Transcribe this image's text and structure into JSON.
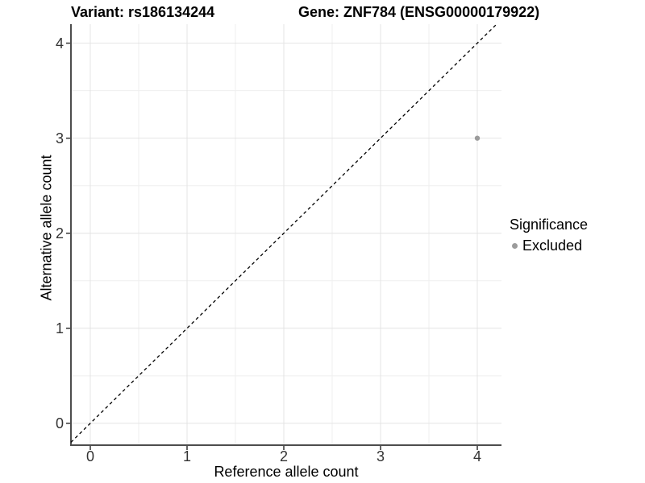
{
  "header": {
    "variant_title": "Variant: rs186134244",
    "gene_title": "Gene: ZNF784 (ENSG00000179922)"
  },
  "axes": {
    "x": {
      "label": "Reference allele count",
      "tick_values": [
        0,
        1,
        2,
        3,
        4
      ]
    },
    "y": {
      "label": "Alternative allele count",
      "tick_values": [
        0,
        1,
        2,
        3,
        4
      ]
    }
  },
  "legend": {
    "title": "Significance",
    "items": [
      {
        "label": "Excluded",
        "color": "#9b9b9b"
      }
    ]
  },
  "chart_data": {
    "type": "scatter",
    "title": "Variant: rs186134244 | Gene: ZNF784 (ENSG00000179922)",
    "xlabel": "Reference allele count",
    "ylabel": "Alternative allele count",
    "xlim": [
      -0.2,
      4.25
    ],
    "ylim": [
      -0.23,
      4.2
    ],
    "x_major": [
      0,
      1,
      2,
      3,
      4
    ],
    "x_minor": [
      0.5,
      1.5,
      2.5,
      3.5
    ],
    "y_major": [
      0,
      1,
      2,
      3,
      4
    ],
    "y_minor": [
      0.5,
      1.5,
      2.5,
      3.5
    ],
    "grid": true,
    "legend_position": "right",
    "series": [
      {
        "name": "Excluded",
        "color": "#9b9b9b",
        "points": [
          [
            4,
            3
          ]
        ]
      }
    ],
    "reference_line": {
      "kind": "identity",
      "equation": "y = x",
      "style": "dashed",
      "color": "#000000"
    }
  },
  "style": {
    "background": "#ffffff",
    "grid_major_color": "#e4e4e4",
    "grid_minor_color": "#efefef",
    "axis_line_color": "#4d4d4d",
    "tick_mark_color": "#333333",
    "tick_label_color": "#333333",
    "text_color": "#000000",
    "point_color": "#9b9b9b"
  }
}
